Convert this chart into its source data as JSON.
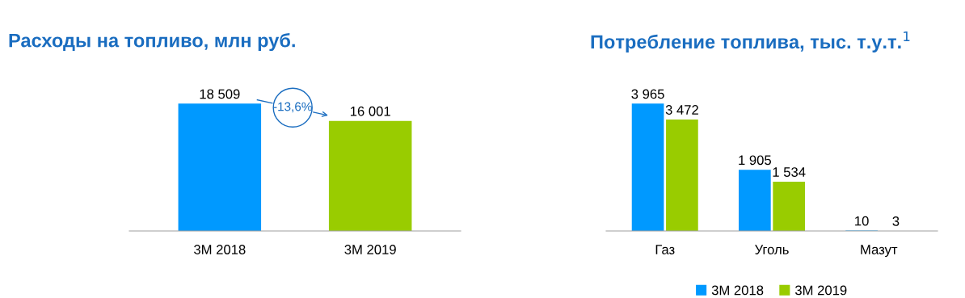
{
  "chart_data": [
    {
      "type": "bar",
      "title": "Расходы на топливо, млн руб.",
      "categories": [
        "3M 2018",
        "3M 2019"
      ],
      "values": [
        18509,
        16001
      ],
      "colors": [
        "#0099ff",
        "#99cc00"
      ],
      "value_labels": [
        "18 509",
        "16 001"
      ],
      "annotations": [
        "-13,6%"
      ],
      "legend": false
    },
    {
      "type": "bar",
      "title": "Потребление топлива, тыс. т.у.т.$^{1}$",
      "categories": [
        "Газ",
        "Уголь",
        "Мазут"
      ],
      "series": [
        {
          "name": "3M 2018",
          "color": "#0099ff",
          "values": [
            3965,
            1905,
            10
          ],
          "value_labels": [
            "3 965",
            "1 905",
            "10"
          ]
        },
        {
          "name": "3M 2019",
          "color": "#99cc00",
          "values": [
            3472,
            1534,
            3
          ],
          "value_labels": [
            "3 472",
            "1 534",
            "3"
          ]
        }
      ],
      "legend": "bottom"
    }
  ]
}
